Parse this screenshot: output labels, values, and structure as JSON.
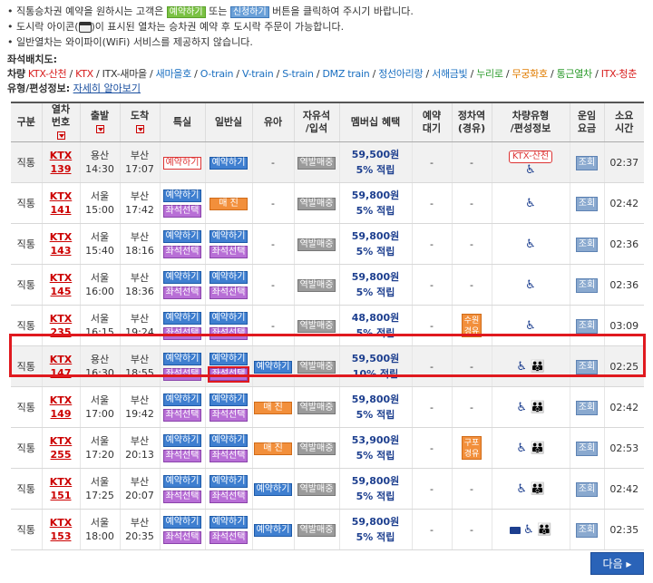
{
  "notice": {
    "line1_pre": "직통승차권 예약을 원하시는 고객은",
    "btn_reserve": "예약하기",
    "line1_mid": "또는",
    "btn_apply": "신청하기",
    "line1_post": "버튼을 클릭하여 주시기 바랍니다.",
    "line2_pre": "도시락 아이콘(",
    "line2_post": ")이 표시된 열차는 승차권 예약 후 도시락 주문이 가능합니다.",
    "line3": "일반열차는 와이파이(WiFi) 서비스를 제공하지 않습니다."
  },
  "legend": {
    "title": "좌석배치도:",
    "car_type_label": "차량",
    "types": [
      {
        "label": "KTX-산천",
        "color": "#d81e1e"
      },
      {
        "label": "KTX",
        "color": "#d81e1e"
      },
      {
        "label": "ITX-새마을",
        "color": "#333333"
      },
      {
        "label": "새마을호",
        "color": "#1a6fc0"
      },
      {
        "label": "O-train",
        "color": "#1a6fc0"
      },
      {
        "label": "V-train",
        "color": "#1a6fc0"
      },
      {
        "label": "S-train",
        "color": "#1a6fc0"
      },
      {
        "label": "DMZ train",
        "color": "#1a6fc0"
      },
      {
        "label": "정선아리랑",
        "color": "#1a6fc0"
      },
      {
        "label": "서해금빛",
        "color": "#1a6fc0"
      },
      {
        "label": "누리로",
        "color": "#2a9a2a"
      },
      {
        "label": "무궁화호",
        "color": "#e07c00"
      },
      {
        "label": "통근열차",
        "color": "#2a9a2a"
      },
      {
        "label": "ITX-청춘",
        "color": "#d81e1e"
      }
    ],
    "formation_label": "유형/편성정보:",
    "formation_link": "자세히 알아보기"
  },
  "headers": {
    "col_type": "구분",
    "col_train_1": "열차",
    "col_train_2": "번호",
    "col_depart": "출발",
    "col_arrive": "도착",
    "col_special": "특실",
    "col_general": "일반실",
    "col_infant": "유아",
    "col_free_1": "자유석",
    "col_free_2": "/입석",
    "col_member": "멤버십 혜택",
    "col_wait_1": "예약",
    "col_wait_2": "대기",
    "col_stop_1": "정차역",
    "col_stop_2": "(경유)",
    "col_car_1": "차량유형",
    "col_car_2": "/편성정보",
    "col_fare_1": "운임",
    "col_fare_2": "요금",
    "col_dur_1": "소요",
    "col_dur_2": "시간"
  },
  "rows": [
    {
      "type": "직통",
      "train": "KTX",
      "no": "139",
      "from": "용산",
      "dep": "14:30",
      "to": "부산",
      "arr": "17:07",
      "special1": "예약하기",
      "special_style": "red",
      "general1": "예약하기",
      "general2": "",
      "infant": "-",
      "free": "역발매중",
      "price": "59,500원",
      "benefit": "5% 적립",
      "wait": "-",
      "stop": "-",
      "car": "KTX-산천",
      "fare": "조회",
      "dur": "02:37"
    },
    {
      "type": "직통",
      "train": "KTX",
      "no": "141",
      "from": "서울",
      "dep": "15:00",
      "to": "부산",
      "arr": "17:42",
      "special1": "예약하기",
      "special2": "좌석선택",
      "general1": "매 진",
      "general_style": "orange",
      "infant": "-",
      "free": "역발매중",
      "price": "59,800원",
      "benefit": "5% 적립",
      "wait": "-",
      "stop": "-",
      "car": "",
      "fare": "조회",
      "dur": "02:42"
    },
    {
      "type": "직통",
      "train": "KTX",
      "no": "143",
      "from": "서울",
      "dep": "15:40",
      "to": "부산",
      "arr": "18:16",
      "special1": "예약하기",
      "special2": "좌석선택",
      "general1": "예약하기",
      "general2": "좌석선택",
      "infant": "-",
      "free": "역발매중",
      "price": "59,800원",
      "benefit": "5% 적립",
      "wait": "-",
      "stop": "-",
      "car": "",
      "fare": "조회",
      "dur": "02:36"
    },
    {
      "type": "직통",
      "train": "KTX",
      "no": "145",
      "from": "서울",
      "dep": "16:00",
      "to": "부산",
      "arr": "18:36",
      "special1": "예약하기",
      "special2": "좌석선택",
      "general1": "예약하기",
      "general2": "좌석선택",
      "infant": "-",
      "free": "역발매중",
      "price": "59,800원",
      "benefit": "5% 적립",
      "wait": "-",
      "stop": "-",
      "car": "",
      "fare": "조회",
      "dur": "02:36"
    },
    {
      "type": "직통",
      "train": "KTX",
      "no": "235",
      "from": "서울",
      "dep": "16:15",
      "to": "부산",
      "arr": "19:24",
      "special1": "예약하기",
      "special2": "좌석선택",
      "general1": "예약하기",
      "general2": "좌석선택",
      "infant": "-",
      "free": "역발매중",
      "price": "48,800원",
      "benefit": "5% 적립",
      "wait": "-",
      "stop": "수원 경유",
      "car": "",
      "fare": "조회",
      "dur": "03:09"
    },
    {
      "type": "직통",
      "train": "KTX",
      "no": "147",
      "from": "용산",
      "dep": "16:30",
      "to": "부산",
      "arr": "18:55",
      "special1": "예약하기",
      "special2": "좌석선택",
      "general1": "예약하기",
      "general2": "좌석선택",
      "infant": "예약하기",
      "free": "역발매중",
      "price": "59,500원",
      "benefit": "10% 적립",
      "wait": "-",
      "stop": "-",
      "car": "family",
      "fare": "조회",
      "dur": "02:25"
    },
    {
      "type": "직통",
      "train": "KTX",
      "no": "149",
      "from": "서울",
      "dep": "17:00",
      "to": "부산",
      "arr": "19:42",
      "special1": "예약하기",
      "special2": "좌석선택",
      "general1": "예약하기",
      "general2": "좌석선택",
      "infant": "매 진",
      "free": "역발매중",
      "price": "59,800원",
      "benefit": "5% 적립",
      "wait": "-",
      "stop": "-",
      "car": "family",
      "fare": "조회",
      "dur": "02:42"
    },
    {
      "type": "직통",
      "train": "KTX",
      "no": "255",
      "from": "서울",
      "dep": "17:20",
      "to": "부산",
      "arr": "20:13",
      "special1": "예약하기",
      "special2": "좌석선택",
      "general1": "예약하기",
      "general2": "좌석선택",
      "infant": "매 진",
      "free": "역발매중",
      "price": "53,900원",
      "benefit": "5% 적립",
      "wait": "-",
      "stop": "구포 경유",
      "car": "family",
      "fare": "조회",
      "dur": "02:53"
    },
    {
      "type": "직통",
      "train": "KTX",
      "no": "151",
      "from": "서울",
      "dep": "17:25",
      "to": "부산",
      "arr": "20:07",
      "special1": "예약하기",
      "special2": "좌석선택",
      "general1": "예약하기",
      "general2": "좌석선택",
      "infant": "예약하기",
      "free": "역발매중",
      "price": "59,800원",
      "benefit": "5% 적립",
      "wait": "-",
      "stop": "-",
      "car": "family",
      "fare": "조회",
      "dur": "02:42"
    },
    {
      "type": "직통",
      "train": "KTX",
      "no": "153",
      "from": "서울",
      "dep": "18:00",
      "to": "부산",
      "arr": "20:35",
      "special1": "예약하기",
      "special2": "좌석선택",
      "general1": "예약하기",
      "general2": "좌석선택",
      "infant": "예약하기",
      "free": "역발매중",
      "price": "59,800원",
      "benefit": "5% 적립",
      "wait": "-",
      "stop": "-",
      "car": "lunch-family",
      "fare": "조회",
      "dur": "02:35"
    }
  ],
  "next_button": "다음 ▸"
}
